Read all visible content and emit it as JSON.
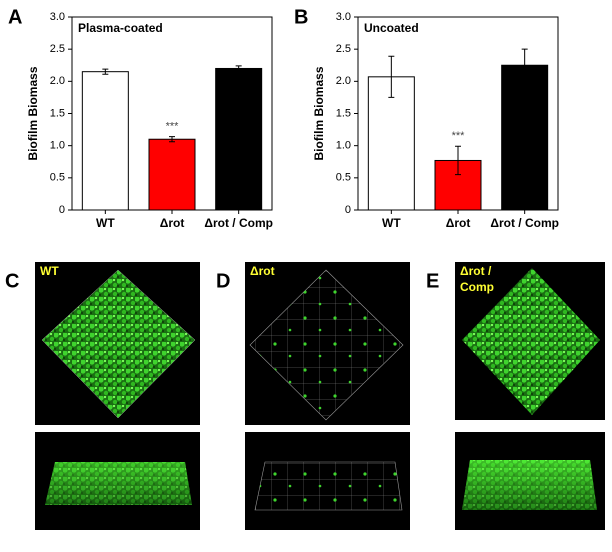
{
  "chart_data": [
    {
      "type": "bar",
      "panel": "A",
      "title": "Plasma-coated",
      "ylabel": "Biofilm Biomass",
      "categories": [
        "WT",
        "Δrot",
        "Δrot / Comp"
      ],
      "values": [
        2.15,
        1.1,
        2.2
      ],
      "errors": [
        0.04,
        0.04,
        0.04
      ],
      "colors": [
        "#ffffff",
        "#ff0000",
        "#000000"
      ],
      "annotations": [
        {
          "category": 1,
          "text": "***"
        }
      ],
      "ylim": [
        0,
        3
      ],
      "yticks": [
        0,
        {
          "value": 0.5,
          "label": "0.5"
        },
        {
          "value": 1,
          "label": "1.0"
        },
        {
          "value": 1.5,
          "label": "1.5"
        },
        {
          "value": 2,
          "label": "2.0"
        },
        {
          "value": 2.5,
          "label": "2.5"
        },
        {
          "value": 3,
          "label": "3.0"
        }
      ]
    },
    {
      "type": "bar",
      "panel": "B",
      "title": "Uncoated",
      "ylabel": "Biofilm Biomass",
      "categories": [
        "WT",
        "Δrot",
        "Δrot / Comp"
      ],
      "values": [
        2.07,
        0.77,
        2.25
      ],
      "errors": [
        0.32,
        0.22,
        0.25
      ],
      "colors": [
        "#ffffff",
        "#ff0000",
        "#000000"
      ],
      "annotations": [
        {
          "category": 1,
          "text": "***"
        }
      ],
      "ylim": [
        0,
        3
      ],
      "yticks": [
        0,
        {
          "value": 0.5,
          "label": "0.5"
        },
        {
          "value": 1,
          "label": "1.0"
        },
        {
          "value": 1.5,
          "label": "1.5"
        },
        {
          "value": 2,
          "label": "2.0"
        },
        {
          "value": 2.5,
          "label": "2.5"
        },
        {
          "value": 3,
          "label": "3.0"
        }
      ]
    }
  ],
  "images": [
    {
      "panel": "C",
      "label": [
        "WT"
      ]
    },
    {
      "panel": "D",
      "label": [
        "Δrot"
      ]
    },
    {
      "panel": "E",
      "label": [
        "Δrot /",
        "Comp"
      ]
    }
  ]
}
